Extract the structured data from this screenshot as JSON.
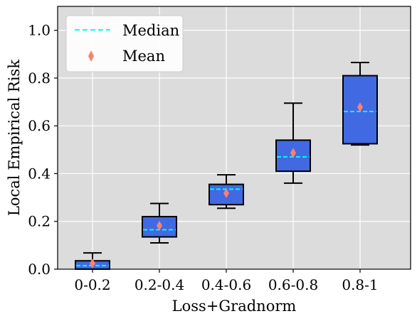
{
  "chart_data": {
    "type": "box",
    "xlabel": "Loss+Gradnorm",
    "ylabel": "Local Empirical Risk",
    "ylim": [
      0.0,
      1.1
    ],
    "yticks": [
      "0.0",
      "0.2",
      "0.4",
      "0.6",
      "0.8",
      "1.0"
    ],
    "ytick_values": [
      0.0,
      0.2,
      0.4,
      0.6,
      0.8,
      1.0
    ],
    "grid": true,
    "legend_position": "top-left",
    "categories": [
      "0-0.2",
      "0.2-0.4",
      "0.4-0.6",
      "0.6-0.8",
      "0.8-1"
    ],
    "boxes": [
      {
        "whisker_low": 0.0,
        "q1": 0.0,
        "median": 0.015,
        "q3": 0.035,
        "whisker_high": 0.068,
        "mean": 0.024
      },
      {
        "whisker_low": 0.11,
        "q1": 0.135,
        "median": 0.165,
        "q3": 0.22,
        "whisker_high": 0.275,
        "mean": 0.182
      },
      {
        "whisker_low": 0.255,
        "q1": 0.27,
        "median": 0.335,
        "q3": 0.355,
        "whisker_high": 0.395,
        "mean": 0.318
      },
      {
        "whisker_low": 0.36,
        "q1": 0.41,
        "median": 0.47,
        "q3": 0.54,
        "whisker_high": 0.695,
        "mean": 0.487
      },
      {
        "whisker_low": 0.52,
        "q1": 0.525,
        "median": 0.66,
        "q3": 0.81,
        "whisker_high": 0.865,
        "mean": 0.678
      }
    ],
    "legend": [
      {
        "label": "Median",
        "marker": "dashed-line"
      },
      {
        "label": "Mean",
        "marker": "diamond"
      }
    ],
    "colors": {
      "plot_background": "#dcdcdc",
      "grid": "#ffffff",
      "box_fill": "#4169e1",
      "box_edge": "#000000",
      "median": "#00ffff",
      "mean": "#fa8072"
    }
  }
}
